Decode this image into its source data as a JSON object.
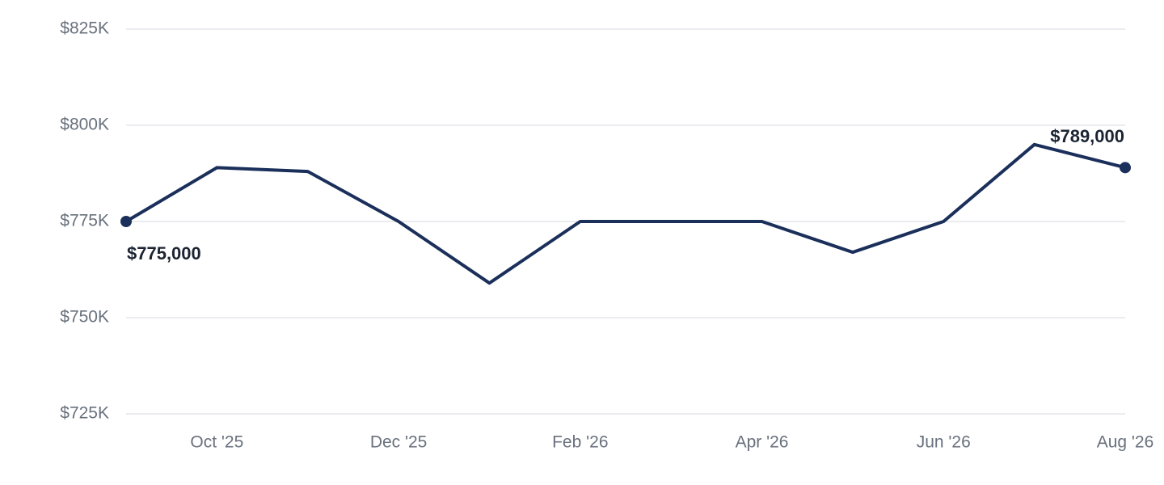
{
  "chart_data": {
    "type": "line",
    "categories": [
      null,
      "Oct '25",
      null,
      "Dec '25",
      null,
      "Feb '26",
      null,
      "Apr '26",
      null,
      "Jun '26",
      null,
      "Aug '26"
    ],
    "values": [
      775000,
      789000,
      788000,
      775000,
      759000,
      775000,
      775000,
      775000,
      767000,
      775000,
      795000,
      789000
    ],
    "value_labels": [
      "$775,000",
      null,
      null,
      null,
      null,
      null,
      null,
      null,
      null,
      null,
      null,
      "$789,000"
    ],
    "color": "#1b2f5b",
    "ylim": [
      725000,
      825000
    ],
    "yticks": [
      {
        "value": 725000,
        "label": "$725K"
      },
      {
        "value": 750000,
        "label": "$750K"
      },
      {
        "value": 775000,
        "label": "$775K"
      },
      {
        "value": 800000,
        "label": "$800K"
      },
      {
        "value": 825000,
        "label": "$825K"
      }
    ],
    "grid": true
  }
}
